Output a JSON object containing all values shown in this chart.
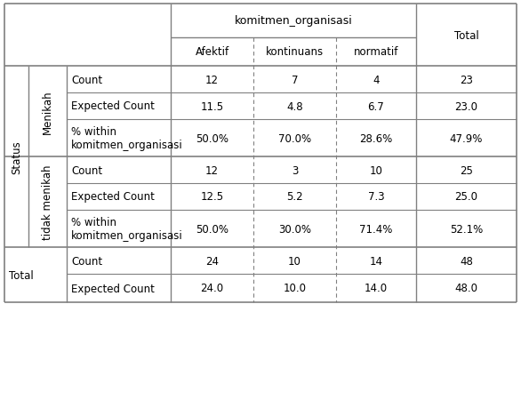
{
  "header_main": "komitmen_organisasi",
  "col_headers": [
    "Afektif",
    "kontinuans",
    "normatif",
    "Total"
  ],
  "row_group1_label": "Menikah",
  "row_group2_label": "tidak menikah",
  "row_outer_label": "Status",
  "group1_data": [
    [
      "12",
      "7",
      "4",
      "23"
    ],
    [
      "11.5",
      "4.8",
      "6.7",
      "23.0"
    ],
    [
      "50.0%",
      "70.0%",
      "28.6%",
      "47.9%"
    ]
  ],
  "group2_data": [
    [
      "12",
      "3",
      "10",
      "25"
    ],
    [
      "12.5",
      "5.2",
      "7.3",
      "25.0"
    ],
    [
      "50.0%",
      "30.0%",
      "71.4%",
      "52.1%"
    ]
  ],
  "total_data": [
    [
      "24",
      "10",
      "14",
      "48"
    ],
    [
      "24.0",
      "10.0",
      "14.0",
      "48.0"
    ]
  ],
  "bg_color": "#ffffff",
  "line_color": "#808080",
  "text_color": "#000000",
  "font_size": 8.5
}
